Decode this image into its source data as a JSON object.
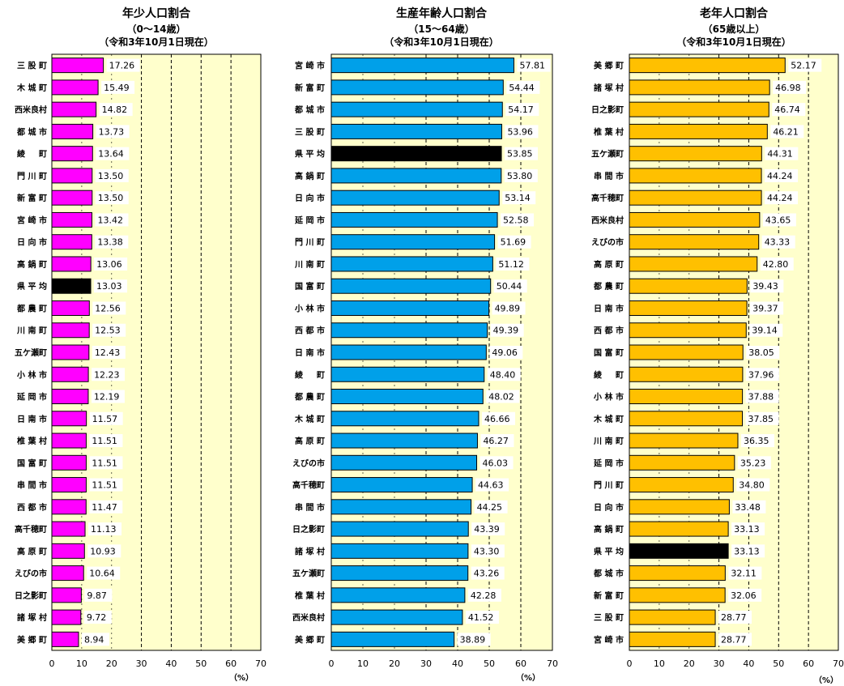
{
  "unit_label": "（%）",
  "chart_data": [
    {
      "type": "bar",
      "orientation": "horizontal",
      "title": "年少人口割合",
      "subtitle": "（0～14歳）",
      "date_note": "（令和3年10月1日現在）",
      "xlim": [
        0,
        70
      ],
      "xticks": [
        0,
        10,
        20,
        30,
        40,
        50,
        60,
        70
      ],
      "xlabel": "（%）",
      "bar_color": "#FF00FF",
      "highlight_color": "#000000",
      "highlight_category": "県 平 均",
      "plot_background": "#FFFFCC",
      "grid": "dashed vertical lines at 30, 40, 50, 60",
      "categories": [
        "三 股 町",
        "木 城 町",
        "西米良村",
        "都 城 市",
        "綾 　 町",
        "門 川 町",
        "新 富 町",
        "宮 崎 市",
        "日 向 市",
        "高 鍋 町",
        "県 平 均",
        "都 農 町",
        "川 南 町",
        "五ケ瀬町",
        "小 林 市",
        "延 岡 市",
        "日 南 市",
        "椎 葉 村",
        "国 富 町",
        "串 間 市",
        "西 都 市",
        "高千穂町",
        "高 原 町",
        "えびの市",
        "日之影町",
        "諸 塚 村",
        "美 郷 町"
      ],
      "values": [
        17.26,
        15.49,
        14.82,
        13.73,
        13.64,
        13.5,
        13.5,
        13.42,
        13.38,
        13.06,
        13.03,
        12.56,
        12.53,
        12.43,
        12.23,
        12.19,
        11.57,
        11.51,
        11.51,
        11.51,
        11.47,
        11.13,
        10.93,
        10.64,
        9.87,
        9.72,
        8.94
      ],
      "value_labels": [
        "17.26",
        "15.49",
        "14.82",
        "13.73",
        "13.64",
        "13.50",
        "13.50",
        "13.42",
        "13.38",
        "13.06",
        "13.03",
        "12.56",
        "12.53",
        "12.43",
        "12.23",
        "12.19",
        "11.57",
        "11.51",
        "11.51",
        "11.51",
        "11.47",
        "11.13",
        "10.93",
        "10.64",
        "9.87",
        "9.72",
        "8.94"
      ]
    },
    {
      "type": "bar",
      "orientation": "horizontal",
      "title": "生産年齢人口割合",
      "subtitle": "（15～64歳）",
      "date_note": "（令和3年10月1日現在）",
      "xlim": [
        0,
        70
      ],
      "xticks": [
        0,
        10,
        20,
        30,
        40,
        50,
        60,
        70
      ],
      "xlabel": "（%）",
      "bar_color": "#00A0E9",
      "highlight_color": "#000000",
      "highlight_category": "県 平 均",
      "plot_background": "#FFFFCC",
      "grid": "dashed vertical lines at 30, 40, 50, 60",
      "categories": [
        "宮 崎 市",
        "新 富 町",
        "都 城 市",
        "三 股 町",
        "県 平 均",
        "高 鍋 町",
        "日 向 市",
        "延 岡 市",
        "門 川 町",
        "川 南 町",
        "国 富 町",
        "小 林 市",
        "西 都 市",
        "日 南 市",
        "綾 　 町",
        "都 農 町",
        "木 城 町",
        "高 原 町",
        "えびの市",
        "高千穂町",
        "串 間 市",
        "日之影町",
        "諸 塚 村",
        "五ケ瀬町",
        "椎 葉 村",
        "西米良村",
        "美 郷 町"
      ],
      "values": [
        57.81,
        54.44,
        54.17,
        53.96,
        53.85,
        53.8,
        53.14,
        52.58,
        51.69,
        51.12,
        50.44,
        49.89,
        49.39,
        49.06,
        48.4,
        48.02,
        46.66,
        46.27,
        46.03,
        44.63,
        44.25,
        43.39,
        43.3,
        43.26,
        42.28,
        41.52,
        38.89
      ],
      "value_labels": [
        "57.81",
        "54.44",
        "54.17",
        "53.96",
        "53.85",
        "53.80",
        "53.14",
        "52.58",
        "51.69",
        "51.12",
        "50.44",
        "49.89",
        "49.39",
        "49.06",
        "48.40",
        "48.02",
        "46.66",
        "46.27",
        "46.03",
        "44.63",
        "44.25",
        "43.39",
        "43.30",
        "43.26",
        "42.28",
        "41.52",
        "38.89"
      ]
    },
    {
      "type": "bar",
      "orientation": "horizontal",
      "title": "老年人口割合",
      "subtitle": "（65歳以上）",
      "date_note": "（令和3年10月1日現在）",
      "xlim": [
        0,
        70
      ],
      "xticks": [
        0,
        10,
        20,
        30,
        40,
        50,
        60,
        70
      ],
      "xlabel": "（%）",
      "bar_color": "#FFC000",
      "highlight_color": "#000000",
      "highlight_category": "県 平 均",
      "plot_background": "#FFFFCC",
      "grid": "dashed vertical lines at 30, 40, 50, 60",
      "categories": [
        "美 郷 町",
        "諸 塚 村",
        "日之影町",
        "椎 葉 村",
        "五ケ瀬町",
        "串 間 市",
        "高千穂町",
        "西米良村",
        "えびの市",
        "高 原 町",
        "都 農 町",
        "日 南 市",
        "西 都 市",
        "国 富 町",
        "綾 　 町",
        "小 林 市",
        "木 城 町",
        "川 南 町",
        "延 岡 市",
        "門 川 町",
        "日 向 市",
        "高 鍋 町",
        "県 平 均",
        "都 城 市",
        "新 富 町",
        "三 股 町",
        "宮 崎 市"
      ],
      "values": [
        52.17,
        46.98,
        46.74,
        46.21,
        44.31,
        44.24,
        44.24,
        43.65,
        43.33,
        42.8,
        39.43,
        39.37,
        39.14,
        38.05,
        37.96,
        37.88,
        37.85,
        36.35,
        35.23,
        34.8,
        33.48,
        33.13,
        33.13,
        32.11,
        32.06,
        28.77,
        28.77
      ],
      "value_labels": [
        "52.17",
        "46.98",
        "46.74",
        "46.21",
        "44.31",
        "44.24",
        "44.24",
        "43.65",
        "43.33",
        "42.80",
        "39.43",
        "39.37",
        "39.14",
        "38.05",
        "37.96",
        "37.88",
        "37.85",
        "36.35",
        "35.23",
        "34.80",
        "33.48",
        "33.13",
        "33.13",
        "32.11",
        "32.06",
        "28.77",
        "28.77"
      ]
    }
  ]
}
